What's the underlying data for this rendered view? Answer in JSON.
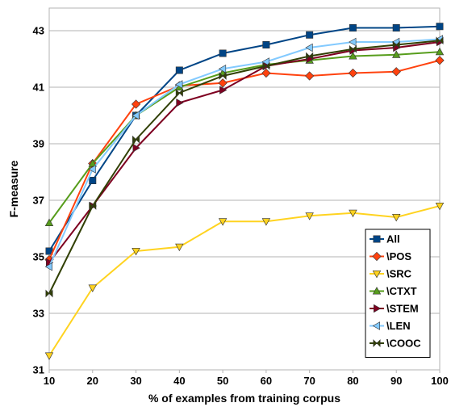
{
  "chart_data": {
    "type": "line",
    "title": "",
    "xlabel": "% of examples from training corpus",
    "ylabel": "F-measure",
    "xlim": [
      10,
      100
    ],
    "ylim": [
      31,
      43.8
    ],
    "xticks": [
      10,
      20,
      30,
      40,
      50,
      60,
      70,
      80,
      90,
      100
    ],
    "yticks": [
      31,
      33,
      35,
      37,
      39,
      41,
      43
    ],
    "grid": "horizontal",
    "legend_position": "bottom-right",
    "x": [
      10,
      20,
      30,
      40,
      50,
      60,
      70,
      80,
      90,
      100
    ],
    "series": [
      {
        "name": "All",
        "color": "#004586",
        "marker": "square",
        "values": [
          35.2,
          37.7,
          40.0,
          41.6,
          42.2,
          42.5,
          42.85,
          43.1,
          43.1,
          43.15
        ]
      },
      {
        "name": "\\POS",
        "color": "#ff420e",
        "marker": "diamond",
        "values": [
          34.9,
          38.3,
          40.4,
          41.05,
          41.15,
          41.5,
          41.4,
          41.5,
          41.55,
          41.95
        ]
      },
      {
        "name": "\\SRC",
        "color": "#ffd320",
        "marker": "triangle-down",
        "values": [
          31.5,
          33.9,
          35.2,
          35.35,
          36.25,
          36.25,
          36.45,
          36.55,
          36.4,
          36.8
        ]
      },
      {
        "name": "\\CTXT",
        "color": "#579d1c",
        "marker": "triangle-up",
        "values": [
          36.2,
          38.3,
          40.0,
          41.0,
          41.5,
          41.8,
          41.95,
          42.1,
          42.15,
          42.25
        ]
      },
      {
        "name": "\\STEM",
        "color": "#7e0021",
        "marker": "triangle-right",
        "values": [
          34.8,
          36.8,
          38.85,
          40.45,
          40.9,
          41.75,
          42.0,
          42.3,
          42.4,
          42.6
        ]
      },
      {
        "name": "\\LEN",
        "color": "#83caff",
        "marker": "triangle-left",
        "values": [
          34.65,
          38.1,
          40.0,
          41.1,
          41.65,
          41.9,
          42.4,
          42.6,
          42.6,
          42.7
        ]
      },
      {
        "name": "\\COOC",
        "color": "#314004",
        "marker": "bowtie",
        "values": [
          33.7,
          36.8,
          39.15,
          40.8,
          41.4,
          41.75,
          42.1,
          42.35,
          42.5,
          42.65
        ]
      }
    ]
  }
}
